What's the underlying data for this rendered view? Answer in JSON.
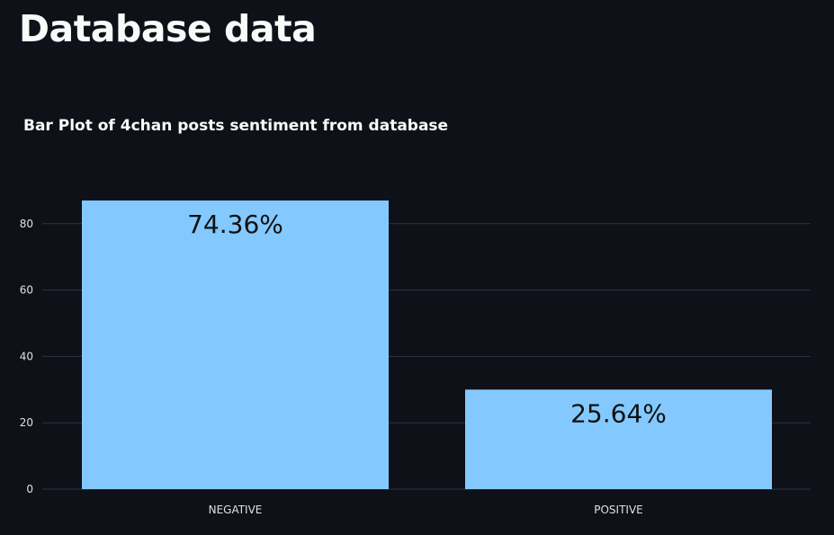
{
  "page": {
    "title": "Database data"
  },
  "chart_data": {
    "type": "bar",
    "title": "Bar Plot of 4chan posts sentiment from database",
    "xlabel": "",
    "ylabel": "",
    "categories": [
      "NEGATIVE",
      "POSITIVE"
    ],
    "values": [
      87,
      30
    ],
    "data_labels": [
      "74.36%",
      "25.64%"
    ],
    "ylim": [
      0,
      87
    ],
    "yticks": [
      0,
      20,
      40,
      60,
      80
    ],
    "grid": true,
    "legend": "none",
    "colors": {
      "bar": "#83c9ff",
      "background": "#0e1117",
      "grid": "#31333f",
      "text": "#fafafa"
    }
  }
}
